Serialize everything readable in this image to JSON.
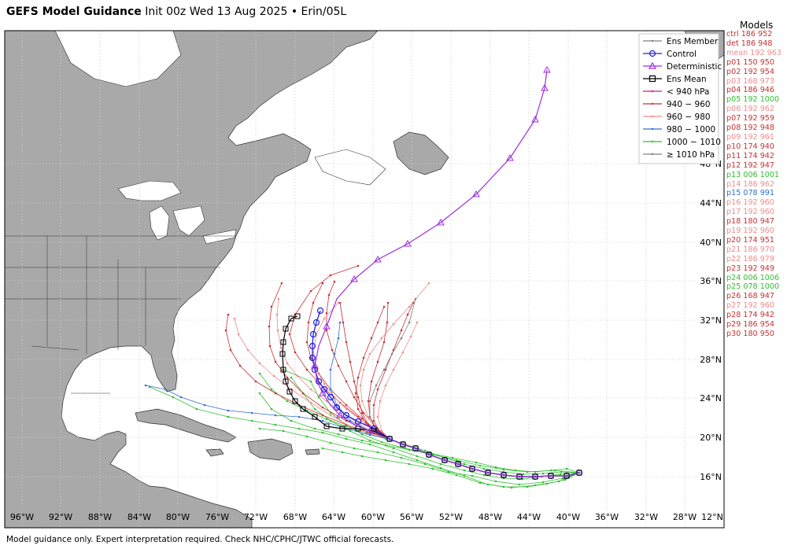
{
  "title": {
    "bold": "GEFS Model Guidance",
    "rest": "Init 00z Wed 13 Aug 2025 • Erin/05L"
  },
  "footer": "Model guidance only. Expert interpretation required. Check NHC/CPHC/JTWC official forecasts.",
  "legend": {
    "items": [
      {
        "label": "Ens Member",
        "color": "#808080",
        "marker": "dot"
      },
      {
        "label": "Control",
        "color": "#2020e0",
        "marker": "circle"
      },
      {
        "label": "Deterministic",
        "color": "#9b30e0",
        "marker": "triangle"
      },
      {
        "label": "Ens Mean",
        "color": "#000000",
        "marker": "square"
      },
      {
        "label": "< 940 hPa",
        "color": "#c0208a",
        "marker": "dot"
      },
      {
        "label": "940 − 960",
        "color": "#c83232",
        "marker": "dot"
      },
      {
        "label": "960 − 980",
        "color": "#f08c8c",
        "marker": "dot"
      },
      {
        "label": "980 − 1000",
        "color": "#3070d0",
        "marker": "dot"
      },
      {
        "label": "1000 − 1010",
        "color": "#30c030",
        "marker": "dot"
      },
      {
        "label": "≥ 1010 hPa",
        "color": "#808080",
        "marker": "dot"
      }
    ]
  },
  "models_title": "Models",
  "models": [
    {
      "text": "ctrl 186 952",
      "color": "#c83232"
    },
    {
      "text": "det 186 948",
      "color": "#c83232"
    },
    {
      "text": "mean 192 963",
      "color": "#f08c8c"
    },
    {
      "text": "p01 150 950",
      "color": "#c83232"
    },
    {
      "text": "p02 192 954",
      "color": "#c83232"
    },
    {
      "text": "p03 168 973",
      "color": "#f08c8c"
    },
    {
      "text": "p04 186 946",
      "color": "#c83232"
    },
    {
      "text": "p05 192 1000",
      "color": "#30c030"
    },
    {
      "text": "p06 192 962",
      "color": "#f08c8c"
    },
    {
      "text": "p07 192 959",
      "color": "#c83232"
    },
    {
      "text": "p08 192 948",
      "color": "#c83232"
    },
    {
      "text": "p09 192 961",
      "color": "#f08c8c"
    },
    {
      "text": "p10 174 940",
      "color": "#c83232"
    },
    {
      "text": "p11 174 942",
      "color": "#c83232"
    },
    {
      "text": "p12 192 947",
      "color": "#c83232"
    },
    {
      "text": "p13 006 1001",
      "color": "#30c030"
    },
    {
      "text": "p14 186 962",
      "color": "#f08c8c"
    },
    {
      "text": "p15 078 991",
      "color": "#3070d0"
    },
    {
      "text": "p16 192 960",
      "color": "#f08c8c"
    },
    {
      "text": "p17 192 960",
      "color": "#f08c8c"
    },
    {
      "text": "p18 180 947",
      "color": "#c83232"
    },
    {
      "text": "p19 192 960",
      "color": "#f08c8c"
    },
    {
      "text": "p20 174 951",
      "color": "#c83232"
    },
    {
      "text": "p21 186 970",
      "color": "#f08c8c"
    },
    {
      "text": "p22 186 979",
      "color": "#f08c8c"
    },
    {
      "text": "p23 192 949",
      "color": "#c83232"
    },
    {
      "text": "p24 006 1006",
      "color": "#30c030"
    },
    {
      "text": "p25 078 1000",
      "color": "#30c030"
    },
    {
      "text": "p26 168 947",
      "color": "#c83232"
    },
    {
      "text": "p27 192 960",
      "color": "#f08c8c"
    },
    {
      "text": "p28 174 942",
      "color": "#c83232"
    },
    {
      "text": "p29 186 954",
      "color": "#c83232"
    },
    {
      "text": "p30 180 950",
      "color": "#c83232"
    }
  ],
  "lat_labels": [
    "16°N",
    "20°N",
    "24°N",
    "28°N",
    "32°N",
    "36°N",
    "40°N",
    "44°N",
    "48°N"
  ],
  "lon_labels": [
    "96°W",
    "92°W",
    "88°W",
    "84°W",
    "80°W",
    "76°W",
    "72°W",
    "68°W",
    "64°W",
    "60°W",
    "56°W",
    "52°W",
    "48°W",
    "44°W",
    "40°W",
    "36°W",
    "32°W",
    "28°W",
    "12°N"
  ],
  "colors": {
    "land": "#a9a9a9",
    "land_border": "#303030",
    "ocean": "#ffffff",
    "grid": "#d0d0d0"
  }
}
